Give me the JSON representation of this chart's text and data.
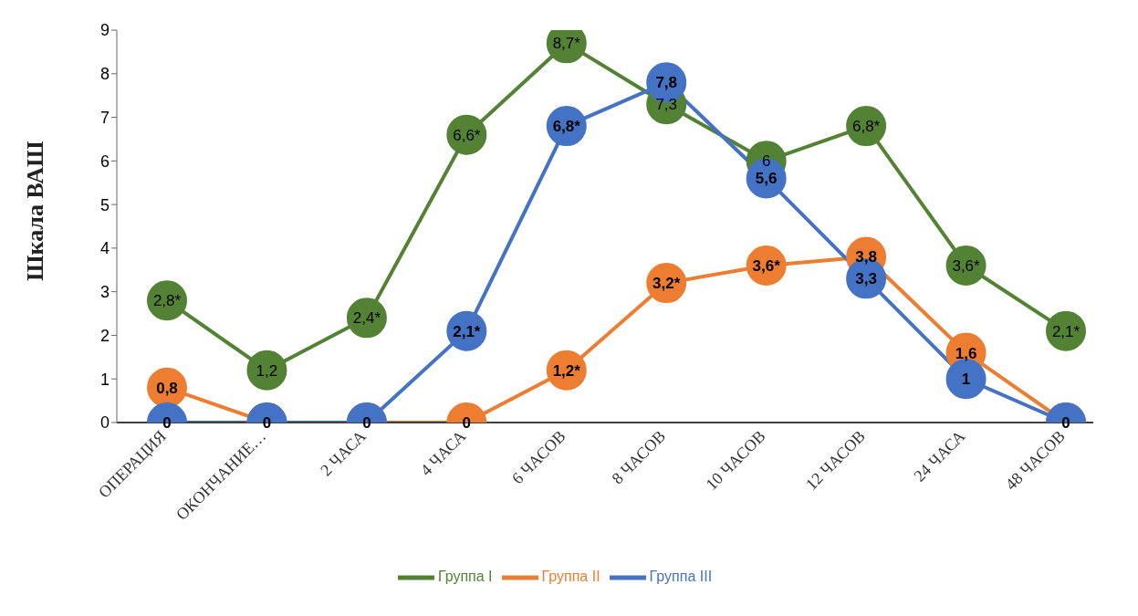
{
  "chart_data": {
    "type": "line",
    "ylabel": "Шкала ВАШ",
    "categories": [
      "ОПЕРАЦИЯ",
      "ОКОНЧАНИЕ…",
      "2 ЧАСА",
      "4 ЧАСА",
      "6 ЧАСОВ",
      "8 ЧАСОВ",
      "10 ЧАСОВ",
      "12 ЧАСОВ",
      "24 ЧАСА",
      "48 ЧАСОВ"
    ],
    "series": [
      {
        "name": "Группа I",
        "color": "#548235",
        "values": [
          2.8,
          1.2,
          2.4,
          6.6,
          8.7,
          7.3,
          6,
          6.8,
          3.6,
          2.1
        ],
        "value_labels": [
          "2,8*",
          "1,2",
          "2,4*",
          "6,6*",
          "8,7*",
          "7,3",
          "6",
          "6,8*",
          "3,6*",
          "2,1*"
        ]
      },
      {
        "name": "Группа II",
        "color": "#ed7d31",
        "values": [
          0.8,
          0,
          0,
          0,
          1.2,
          3.2,
          3.6,
          3.8,
          1.6,
          0
        ],
        "value_labels": [
          "0,8",
          null,
          null,
          "0",
          "1,2*",
          "3,2*",
          "3,6*",
          "3,8",
          "1,6",
          null
        ]
      },
      {
        "name": "Группа III",
        "color": "#4472c4",
        "values": [
          0,
          0,
          0,
          2.1,
          6.8,
          7.8,
          5.6,
          3.3,
          1,
          0
        ],
        "value_labels": [
          "0",
          "0",
          "0",
          "2,1*",
          "6,8*",
          "7,8",
          "5,6",
          "3,3",
          "1",
          "0"
        ]
      }
    ],
    "ylim": [
      0,
      9
    ],
    "yticks": [
      0,
      1,
      2,
      3,
      4,
      5,
      6,
      7,
      8,
      9
    ],
    "grid": false,
    "legend": "bottom",
    "marker": "circle",
    "line_style": "solid"
  }
}
